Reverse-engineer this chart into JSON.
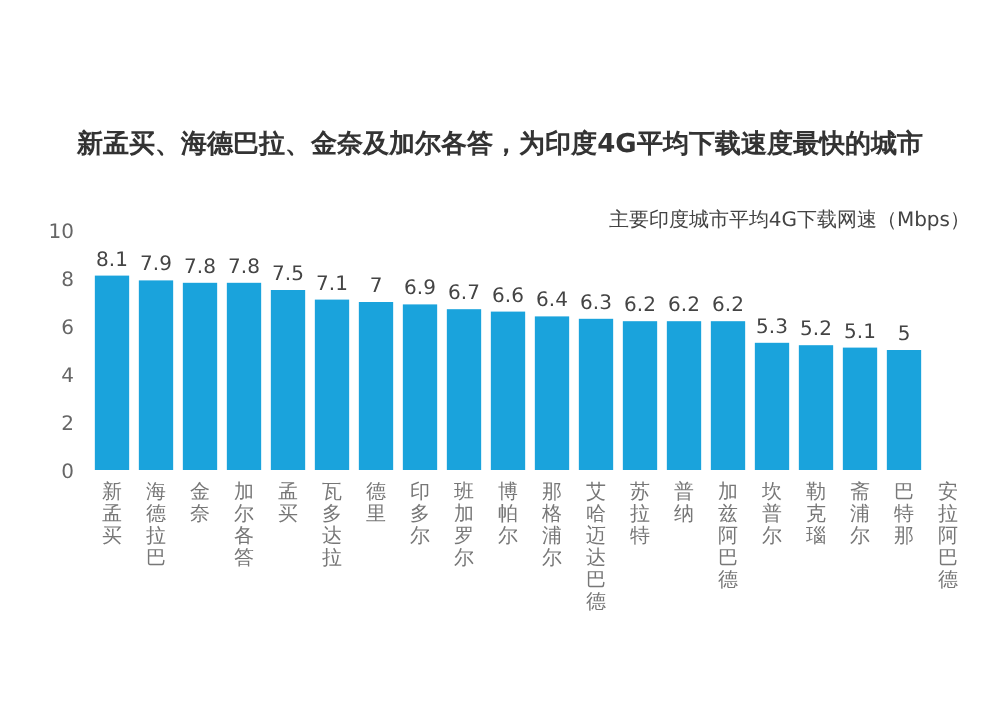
{
  "chart_data": {
    "type": "bar",
    "title": "新孟买、海德巴拉、金奈及加尔各答，为印度4G平均下载速度最快的城市",
    "subtitle": "主要印度城市平均4G下载网速（Mbps）",
    "categories": [
      "新孟买",
      "海德拉巴",
      "金奈",
      "加尔各答",
      "孟买",
      "瓦多达拉",
      "德里",
      "印多尔",
      "班加罗尔",
      "博帕尔",
      "那格浦尔",
      "艾哈迈达巴德",
      "苏拉特",
      "普纳",
      "加兹阿巴德",
      "坎普尔",
      "勒克瑙",
      "斋浦尔",
      "巴特那",
      "安拉阿巴德"
    ],
    "values": [
      8.1,
      7.9,
      7.8,
      7.8,
      7.5,
      7.1,
      7,
      6.9,
      6.7,
      6.6,
      6.4,
      6.3,
      6.2,
      6.2,
      6.2,
      5.3,
      5.2,
      5.1,
      5,
      null
    ],
    "color": "#1aa3dc",
    "ylim": [
      0,
      10
    ],
    "yticks": [
      0,
      2,
      4,
      6,
      8,
      10
    ],
    "data_labels": true
  }
}
